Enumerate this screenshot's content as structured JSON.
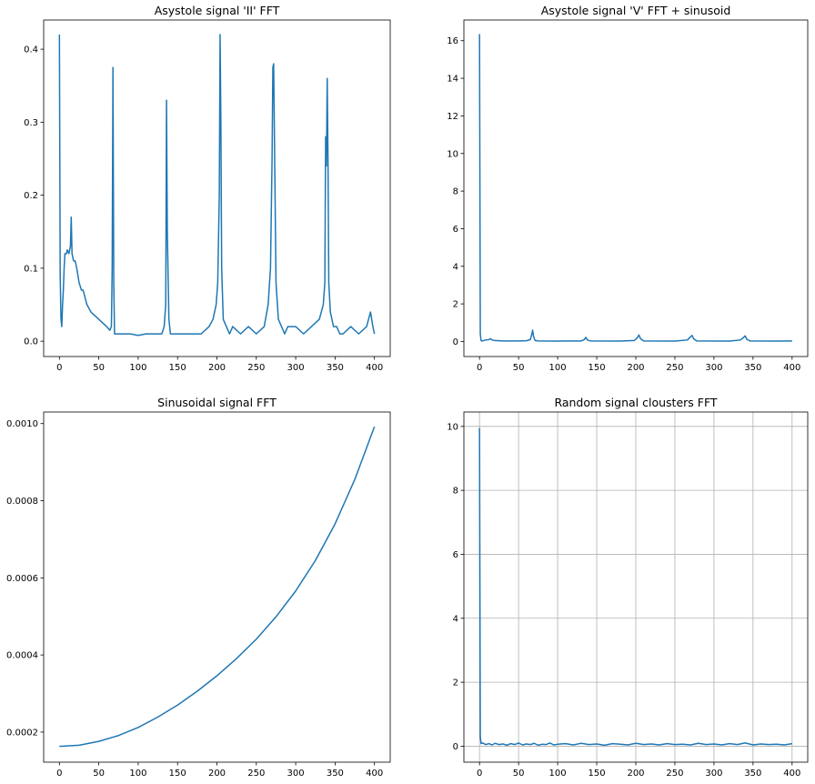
{
  "chart_data": [
    {
      "type": "line",
      "title": "Asystole signal 'II' FFT",
      "xlabel": "",
      "ylabel": "",
      "xlim": [
        -20,
        420
      ],
      "ylim": [
        -0.021,
        0.44
      ],
      "grid": false,
      "color": "#1f77b4",
      "xticks": [
        0,
        50,
        100,
        150,
        200,
        250,
        300,
        350,
        400
      ],
      "yticks": [
        0.0,
        0.1,
        0.2,
        0.3,
        0.4
      ],
      "ytick_labels": [
        "0.0",
        "0.1",
        "0.2",
        "0.3",
        "0.4"
      ],
      "series": [
        {
          "name": "",
          "x": [
            0,
            1,
            2,
            3,
            4,
            5,
            6,
            7,
            8,
            9,
            10,
            12,
            14,
            15,
            16,
            18,
            20,
            22,
            25,
            28,
            30,
            35,
            40,
            45,
            50,
            55,
            60,
            64,
            66,
            67,
            68,
            69,
            70,
            72,
            75,
            80,
            90,
            100,
            110,
            120,
            130,
            133,
            135,
            136,
            137,
            139,
            141,
            145,
            150,
            160,
            170,
            180,
            190,
            195,
            199,
            201,
            203,
            204,
            205,
            206,
            208,
            212,
            216,
            220,
            230,
            240,
            250,
            260,
            265,
            268,
            270,
            271,
            272,
            273,
            275,
            278,
            282,
            286,
            290,
            300,
            310,
            320,
            330,
            335,
            337,
            338,
            339,
            340,
            341,
            342,
            344,
            348,
            352,
            356,
            360,
            370,
            380,
            390,
            395,
            398,
            400
          ],
          "y": [
            0.42,
            0.09,
            0.03,
            0.02,
            0.05,
            0.07,
            0.1,
            0.12,
            0.12,
            0.12,
            0.125,
            0.12,
            0.13,
            0.17,
            0.12,
            0.11,
            0.11,
            0.1,
            0.08,
            0.07,
            0.07,
            0.05,
            0.04,
            0.035,
            0.03,
            0.025,
            0.02,
            0.015,
            0.02,
            0.1,
            0.375,
            0.08,
            0.01,
            0.01,
            0.01,
            0.01,
            0.01,
            0.008,
            0.01,
            0.01,
            0.01,
            0.02,
            0.05,
            0.33,
            0.15,
            0.03,
            0.01,
            0.01,
            0.01,
            0.01,
            0.01,
            0.01,
            0.02,
            0.03,
            0.05,
            0.08,
            0.2,
            0.42,
            0.3,
            0.1,
            0.03,
            0.02,
            0.01,
            0.02,
            0.01,
            0.02,
            0.01,
            0.02,
            0.05,
            0.1,
            0.25,
            0.375,
            0.38,
            0.28,
            0.08,
            0.03,
            0.02,
            0.01,
            0.02,
            0.02,
            0.01,
            0.02,
            0.03,
            0.05,
            0.08,
            0.28,
            0.24,
            0.36,
            0.25,
            0.08,
            0.04,
            0.02,
            0.02,
            0.01,
            0.01,
            0.02,
            0.01,
            0.02,
            0.04,
            0.02,
            0.01
          ]
        }
      ]
    },
    {
      "type": "line",
      "title": "Asystole signal 'V' FFT + sinusoid",
      "xlabel": "",
      "ylabel": "",
      "xlim": [
        -20,
        420
      ],
      "ylim": [
        -0.8,
        17.1
      ],
      "grid": false,
      "color": "#1f77b4",
      "xticks": [
        0,
        50,
        100,
        150,
        200,
        250,
        300,
        350,
        400
      ],
      "yticks": [
        0,
        2,
        4,
        6,
        8,
        10,
        12,
        14,
        16
      ],
      "ytick_labels": [
        "0",
        "2",
        "4",
        "6",
        "8",
        "10",
        "12",
        "14",
        "16"
      ],
      "series": [
        {
          "name": "",
          "x": [
            0,
            1,
            2,
            3,
            5,
            8,
            12,
            14,
            16,
            20,
            30,
            50,
            60,
            65,
            67,
            68,
            69,
            71,
            75,
            100,
            130,
            134,
            136,
            138,
            142,
            180,
            198,
            202,
            204,
            206,
            210,
            250,
            266,
            270,
            272,
            274,
            278,
            320,
            334,
            338,
            340,
            342,
            346,
            380,
            400
          ],
          "y": [
            16.35,
            0.4,
            0.05,
            0.02,
            0.05,
            0.08,
            0.1,
            0.15,
            0.08,
            0.05,
            0.03,
            0.03,
            0.04,
            0.1,
            0.4,
            0.6,
            0.3,
            0.05,
            0.03,
            0.02,
            0.03,
            0.1,
            0.22,
            0.08,
            0.03,
            0.02,
            0.05,
            0.2,
            0.35,
            0.15,
            0.03,
            0.02,
            0.08,
            0.25,
            0.32,
            0.15,
            0.03,
            0.02,
            0.08,
            0.22,
            0.3,
            0.12,
            0.03,
            0.02,
            0.03
          ]
        }
      ]
    },
    {
      "type": "line",
      "title": "Sinusoidal signal FFT",
      "xlabel": "",
      "ylabel": "",
      "xlim": [
        -20,
        420
      ],
      "ylim": [
        0.000122,
        0.00103
      ],
      "grid": false,
      "color": "#1f77b4",
      "xticks": [
        0,
        50,
        100,
        150,
        200,
        250,
        300,
        350,
        400
      ],
      "yticks": [
        0.0002,
        0.0004,
        0.0006,
        0.0008,
        0.001
      ],
      "ytick_labels": [
        "0.0002",
        "0.0004",
        "0.0006",
        "0.0008",
        "0.0010"
      ],
      "series": [
        {
          "name": "",
          "x": [
            0,
            25,
            50,
            75,
            100,
            125,
            150,
            175,
            200,
            225,
            250,
            275,
            300,
            325,
            350,
            375,
            400
          ],
          "y": [
            0.000163,
            0.000166,
            0.000176,
            0.000191,
            0.000212,
            0.000239,
            0.00027,
            0.000306,
            0.000346,
            0.000391,
            0.000441,
            0.000499,
            0.000566,
            0.000645,
            0.00074,
            0.000855,
            0.000992
          ]
        }
      ]
    },
    {
      "type": "line",
      "title": "Random signal clousters FFT",
      "xlabel": "",
      "ylabel": "",
      "xlim": [
        -20,
        420
      ],
      "ylim": [
        -0.5,
        10.45
      ],
      "grid": true,
      "color": "#1f77b4",
      "xticks": [
        0,
        50,
        100,
        150,
        200,
        250,
        300,
        350,
        400
      ],
      "yticks": [
        0,
        2,
        4,
        6,
        8,
        10
      ],
      "ytick_labels": [
        "0",
        "2",
        "4",
        "6",
        "8",
        "10"
      ],
      "series": [
        {
          "name": "",
          "x": [
            0,
            1,
            2,
            4,
            8,
            12,
            16,
            20,
            25,
            30,
            35,
            40,
            45,
            50,
            55,
            60,
            65,
            70,
            75,
            80,
            85,
            90,
            95,
            100,
            110,
            120,
            130,
            140,
            150,
            160,
            170,
            180,
            190,
            200,
            210,
            220,
            230,
            240,
            250,
            260,
            270,
            280,
            290,
            300,
            310,
            320,
            330,
            340,
            350,
            360,
            370,
            380,
            390,
            400
          ],
          "y": [
            9.95,
            0.3,
            0.08,
            0.1,
            0.05,
            0.08,
            0.04,
            0.09,
            0.05,
            0.07,
            0.03,
            0.08,
            0.05,
            0.1,
            0.04,
            0.07,
            0.05,
            0.09,
            0.03,
            0.06,
            0.05,
            0.1,
            0.04,
            0.06,
            0.08,
            0.04,
            0.09,
            0.05,
            0.07,
            0.03,
            0.08,
            0.06,
            0.04,
            0.09,
            0.05,
            0.07,
            0.04,
            0.08,
            0.05,
            0.06,
            0.04,
            0.09,
            0.05,
            0.07,
            0.04,
            0.08,
            0.05,
            0.1,
            0.04,
            0.07,
            0.05,
            0.06,
            0.04,
            0.08
          ]
        }
      ]
    }
  ]
}
